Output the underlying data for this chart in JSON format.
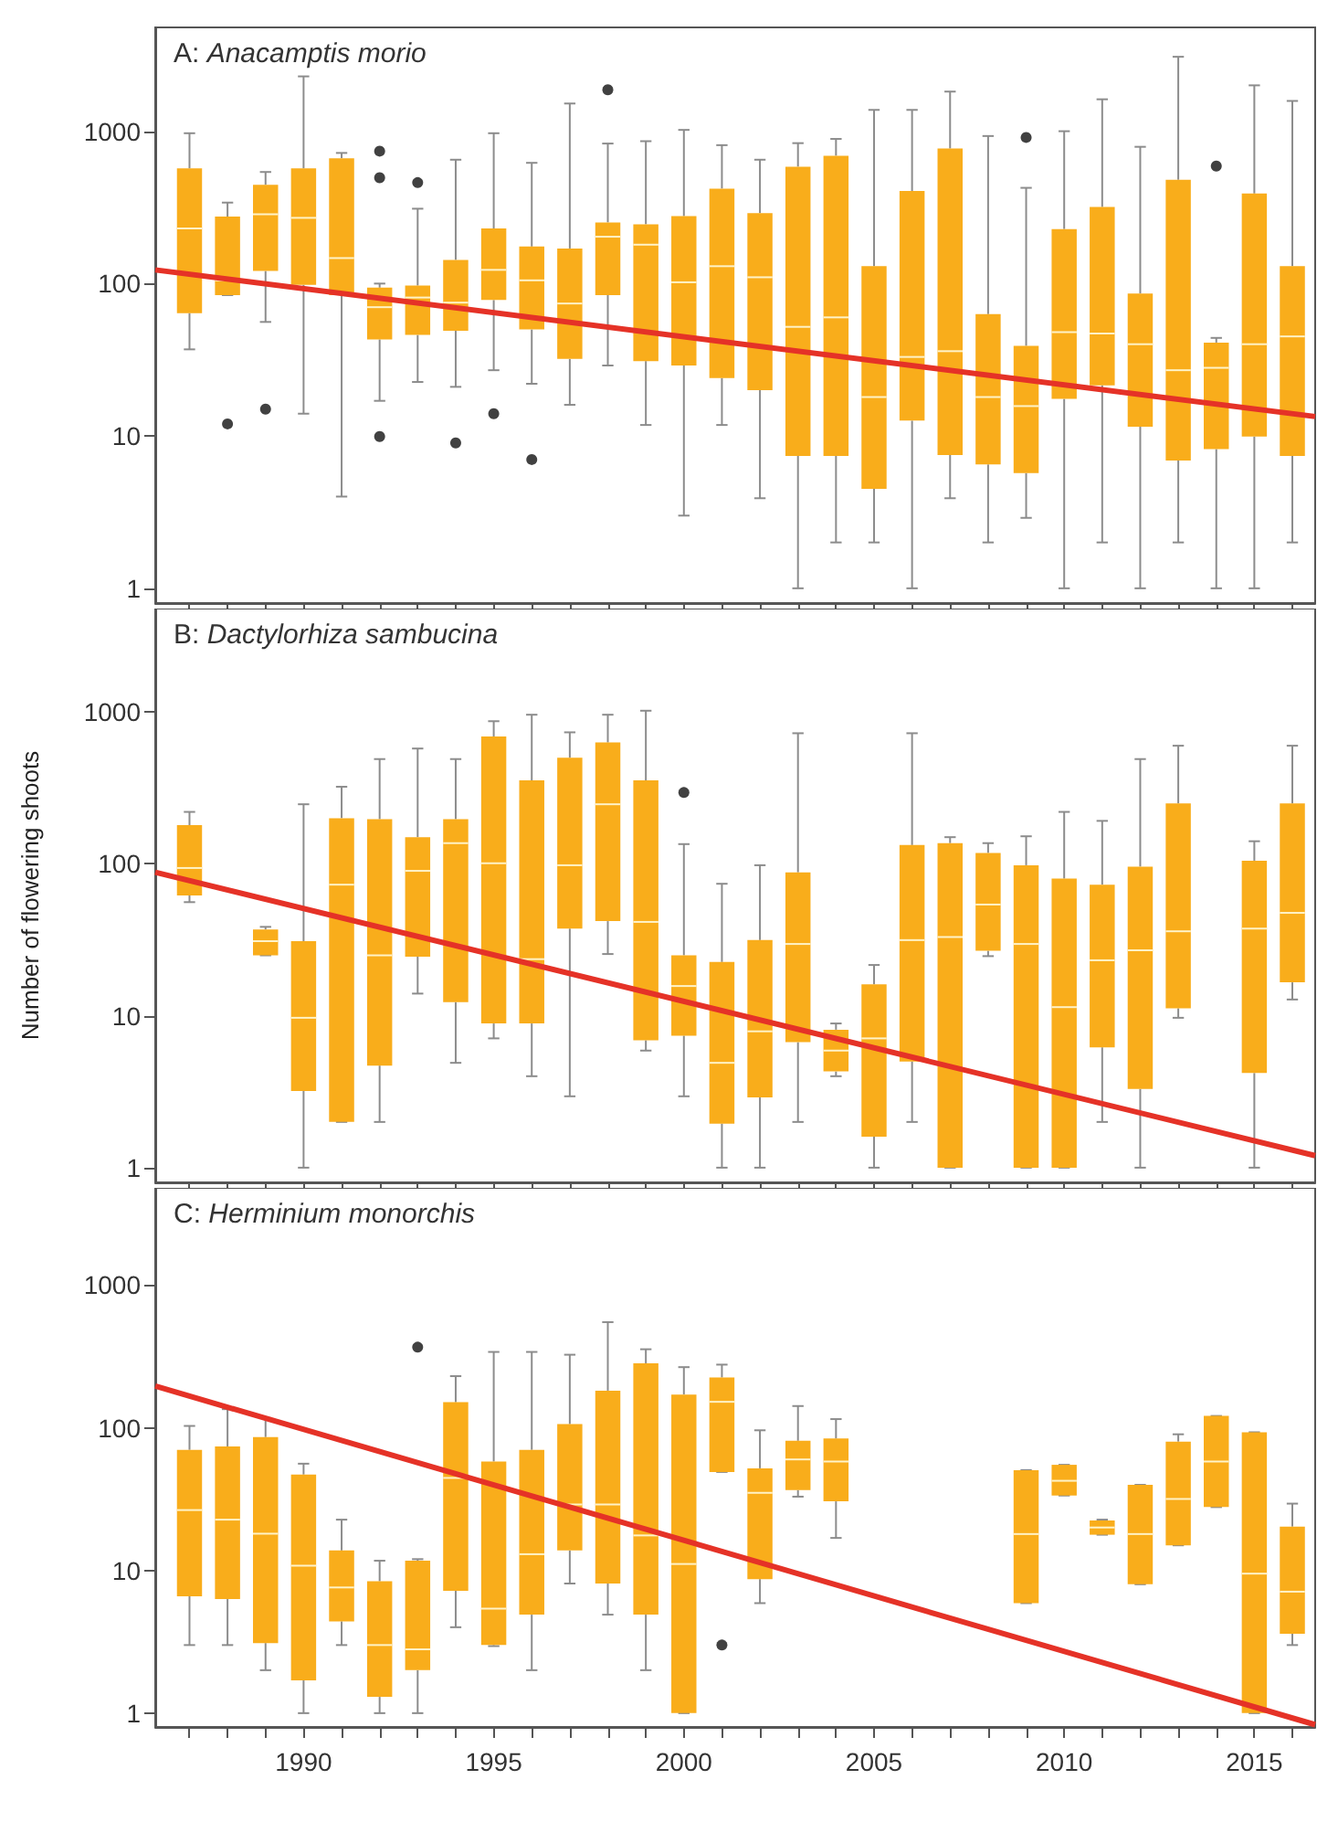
{
  "chart_data": [
    {
      "type": "box",
      "title": "A: Anacamptis morio",
      "log": "y",
      "tick_labels": "y",
      "xlim": [
        1986.1,
        2016.6
      ],
      "ylim": [
        0.8,
        4800
      ],
      "yticks": [
        1,
        10,
        100,
        1000
      ],
      "xticks": [
        {
          "value": 1987,
          "label": null
        },
        {
          "value": 1988,
          "label": null
        },
        {
          "value": 1989,
          "label": null
        },
        1990,
        {
          "value": 1991,
          "label": null
        },
        {
          "value": 1992,
          "label": null
        },
        {
          "value": 1993,
          "label": null
        },
        {
          "value": 1994,
          "label": null
        },
        1995,
        {
          "value": 1996,
          "label": null
        },
        {
          "value": 1997,
          "label": null
        },
        {
          "value": 1998,
          "label": null
        },
        {
          "value": 1999,
          "label": null
        },
        2000,
        {
          "value": 2001,
          "label": null
        },
        {
          "value": 2002,
          "label": null
        },
        {
          "value": 2003,
          "label": null
        },
        {
          "value": 2004,
          "label": null
        },
        2005,
        {
          "value": 2006,
          "label": null
        },
        {
          "value": 2007,
          "label": null
        },
        {
          "value": 2008,
          "label": null
        },
        {
          "value": 2009,
          "label": null
        },
        2010,
        {
          "value": 2011,
          "label": null
        },
        {
          "value": 2012,
          "label": null
        },
        {
          "value": 2013,
          "label": null
        },
        {
          "value": 2014,
          "label": null
        },
        2015,
        {
          "value": 2016,
          "label": null
        }
      ],
      "series": [
        {
          "color": "#f9ad1b",
          "x": [
            1987,
            1988,
            1989,
            1990,
            1991,
            1992,
            1993,
            1994,
            1995,
            1996,
            1997,
            1998,
            1999,
            2000,
            2001,
            2002,
            2003,
            2004,
            2005,
            2006,
            2007,
            2008,
            2009,
            2010,
            2011,
            2012,
            2013,
            2014,
            2015,
            2016
          ],
          "boxes": [
            {
              "low": 37,
              "q1": 64,
              "median": 230,
              "q3": 570,
              "high": 970
            },
            {
              "low": 84,
              "q1": 84,
              "median": 105,
              "q3": 275,
              "high": 340,
              "outliers": [
                12
              ]
            },
            {
              "low": 56,
              "q1": 121,
              "median": 285,
              "q3": 445,
              "high": 540,
              "outliers": [
                15
              ]
            },
            {
              "low": 14,
              "q1": 98,
              "median": 270,
              "q3": 570,
              "high": 2290
            },
            {
              "low": 4,
              "q1": 84,
              "median": 147,
              "q3": 665,
              "high": 720
            },
            {
              "low": 17,
              "q1": 43,
              "median": 70,
              "q3": 94,
              "high": 100,
              "outliers": [
                740,
                495,
                9.9
              ]
            },
            {
              "low": 22.6,
              "q1": 46,
              "median": 81,
              "q3": 97,
              "high": 310,
              "outliers": [
                460
              ]
            },
            {
              "low": 21,
              "q1": 49,
              "median": 75,
              "q3": 143,
              "high": 650,
              "outliers": [
                9
              ]
            },
            {
              "low": 27,
              "q1": 78,
              "median": 123,
              "q3": 230,
              "high": 970,
              "outliers": [
                14
              ]
            },
            {
              "low": 22,
              "q1": 50,
              "median": 105,
              "q3": 175,
              "high": 620,
              "outliers": [
                7
              ]
            },
            {
              "low": 16,
              "q1": 32,
              "median": 74,
              "q3": 170,
              "high": 1520
            },
            {
              "low": 29,
              "q1": 84,
              "median": 203,
              "q3": 252,
              "high": 830,
              "outliers": [
                1870
              ]
            },
            {
              "low": 11.8,
              "q1": 31,
              "median": 180,
              "q3": 245,
              "high": 860
            },
            {
              "low": 3,
              "q1": 29,
              "median": 102,
              "q3": 277,
              "high": 1020
            },
            {
              "low": 11.8,
              "q1": 24,
              "median": 130,
              "q3": 420,
              "high": 810
            },
            {
              "low": 3.9,
              "q1": 20,
              "median": 110,
              "q3": 290,
              "high": 650
            },
            {
              "low": 1,
              "q1": 7.4,
              "median": 52,
              "q3": 585,
              "high": 835
            },
            {
              "low": 2,
              "q1": 7.4,
              "median": 60,
              "q3": 690,
              "high": 890
            },
            {
              "low": 2,
              "q1": 4.5,
              "median": 18,
              "q3": 130,
              "high": 1380
            },
            {
              "low": 1,
              "q1": 12.6,
              "median": 33,
              "q3": 405,
              "high": 1380
            },
            {
              "low": 3.9,
              "q1": 7.5,
              "median": 36,
              "q3": 770,
              "high": 1820
            },
            {
              "low": 2,
              "q1": 6.5,
              "median": 18,
              "q3": 63,
              "high": 930
            },
            {
              "low": 2.9,
              "q1": 5.7,
              "median": 15.7,
              "q3": 39,
              "high": 425,
              "outliers": [
                910
              ]
            },
            {
              "low": 1,
              "q1": 17.5,
              "median": 48,
              "q3": 228,
              "high": 1000
            },
            {
              "low": 2,
              "q1": 21.5,
              "median": 47,
              "q3": 318,
              "high": 1620
            },
            {
              "low": 1,
              "q1": 11.5,
              "median": 40,
              "q3": 86,
              "high": 790
            },
            {
              "low": 2,
              "q1": 6.9,
              "median": 27,
              "q3": 480,
              "high": 3080
            },
            {
              "low": 1,
              "q1": 8.2,
              "median": 28,
              "q3": 41,
              "high": 44,
              "outliers": [
                590
              ]
            },
            {
              "low": 1,
              "q1": 9.9,
              "median": 40,
              "q3": 390,
              "high": 2000
            },
            {
              "low": 2,
              "q1": 7.4,
              "median": 45,
              "q3": 130,
              "high": 1580
            }
          ]
        },
        {
          "type": "line",
          "color": "#e53227",
          "x": [
            1986.1,
            2016.6
          ],
          "values": [
            123,
            13.4
          ]
        }
      ]
    },
    {
      "type": "box",
      "title": "B: Dactylorhiza sambucina",
      "ylabel": "Number of flowering shoots",
      "log": "y",
      "tick_labels": "y",
      "xlim": [
        1986.1,
        2016.6
      ],
      "ylim": [
        0.8,
        4800
      ],
      "yticks": [
        1,
        10,
        100,
        1000
      ],
      "xticks": [
        {
          "value": 1987,
          "label": null
        },
        {
          "value": 1988,
          "label": null
        },
        {
          "value": 1989,
          "label": null
        },
        1990,
        {
          "value": 1991,
          "label": null
        },
        {
          "value": 1992,
          "label": null
        },
        {
          "value": 1993,
          "label": null
        },
        {
          "value": 1994,
          "label": null
        },
        1995,
        {
          "value": 1996,
          "label": null
        },
        {
          "value": 1997,
          "label": null
        },
        {
          "value": 1998,
          "label": null
        },
        {
          "value": 1999,
          "label": null
        },
        2000,
        {
          "value": 2001,
          "label": null
        },
        {
          "value": 2002,
          "label": null
        },
        {
          "value": 2003,
          "label": null
        },
        {
          "value": 2004,
          "label": null
        },
        2005,
        {
          "value": 2006,
          "label": null
        },
        {
          "value": 2007,
          "label": null
        },
        {
          "value": 2008,
          "label": null
        },
        {
          "value": 2009,
          "label": null
        },
        2010,
        {
          "value": 2011,
          "label": null
        },
        {
          "value": 2012,
          "label": null
        },
        {
          "value": 2013,
          "label": null
        },
        {
          "value": 2014,
          "label": null
        },
        2015,
        {
          "value": 2016,
          "label": null
        }
      ],
      "series": [
        {
          "color": "#f9ad1b",
          "x": [
            1987,
            1989,
            1990,
            1991,
            1992,
            1993,
            1994,
            1995,
            1996,
            1997,
            1998,
            1999,
            2000,
            2001,
            2002,
            2003,
            2004,
            2005,
            2006,
            2007,
            2008,
            2009,
            2010,
            2011,
            2012,
            2013,
            2015,
            2016
          ],
          "boxes": [
            {
              "low": 56,
              "q1": 62,
              "median": 94,
              "q3": 180,
              "high": 220
            },
            {
              "low": 25,
              "q1": 25,
              "median": 31,
              "q3": 37,
              "high": 38.5
            },
            {
              "low": 1,
              "q1": 3.2,
              "median": 9.7,
              "q3": 31,
              "high": 247
            },
            {
              "low": 2,
              "q1": 2,
              "median": 73,
              "q3": 200,
              "high": 322
            },
            {
              "low": 2,
              "q1": 4.7,
              "median": 25,
              "q3": 197,
              "high": 490
            },
            {
              "low": 14,
              "q1": 24.5,
              "median": 90,
              "q3": 150,
              "high": 575
            },
            {
              "low": 4.9,
              "q1": 12.3,
              "median": 137,
              "q3": 197,
              "high": 490
            },
            {
              "low": 7.1,
              "q1": 8.9,
              "median": 101,
              "q3": 690,
              "high": 870
            },
            {
              "low": 4,
              "q1": 8.9,
              "median": 23.6,
              "q3": 355,
              "high": 960
            },
            {
              "low": 2.95,
              "q1": 37.5,
              "median": 98,
              "q3": 500,
              "high": 735
            },
            {
              "low": 25.5,
              "q1": 42,
              "median": 247,
              "q3": 630,
              "high": 960
            },
            {
              "low": 5.9,
              "q1": 6.9,
              "median": 41.5,
              "q3": 355,
              "high": 1020
            },
            {
              "low": 2.95,
              "q1": 7.4,
              "median": 15.7,
              "q3": 25,
              "high": 135,
              "outliers": [
                295
              ]
            },
            {
              "low": 1,
              "q1": 1.95,
              "median": 4.9,
              "q3": 22.6,
              "high": 74
            },
            {
              "low": 1,
              "q1": 2.9,
              "median": 7.9,
              "q3": 31.5,
              "high": 98
            },
            {
              "low": 2,
              "q1": 6.7,
              "median": 29.7,
              "q3": 88,
              "high": 725
            },
            {
              "low": 4,
              "q1": 4.3,
              "median": 5.9,
              "q3": 8.1,
              "high": 8.9
            },
            {
              "low": 1,
              "q1": 1.6,
              "median": 7.1,
              "q3": 16.1,
              "high": 21.6
            },
            {
              "low": 2,
              "q1": 5,
              "median": 31.5,
              "q3": 133,
              "high": 725
            },
            {
              "low": 1,
              "q1": 1,
              "median": 33,
              "q3": 137,
              "high": 150
            },
            {
              "low": 24.7,
              "q1": 26.8,
              "median": 54,
              "q3": 118,
              "high": 137
            },
            {
              "low": 1,
              "q1": 1,
              "median": 29.7,
              "q3": 98,
              "high": 152
            },
            {
              "low": 1,
              "q1": 1,
              "median": 11.4,
              "q3": 80,
              "high": 220
            },
            {
              "low": 2,
              "q1": 6.2,
              "median": 23.2,
              "q3": 73,
              "high": 192
            },
            {
              "low": 1,
              "q1": 3.3,
              "median": 27,
              "q3": 96,
              "high": 490
            },
            {
              "low": 9.7,
              "q1": 11.2,
              "median": 36,
              "q3": 250,
              "high": 600
            },
            {
              "low": 1,
              "q1": 4.2,
              "median": 37.5,
              "q3": 105,
              "high": 141
            },
            {
              "low": 12.8,
              "q1": 16.6,
              "median": 47.6,
              "q3": 250,
              "high": 600
            }
          ]
        },
        {
          "type": "line",
          "color": "#e53227",
          "x": [
            1986.1,
            2016.6
          ],
          "values": [
            88,
            1.2
          ]
        }
      ]
    },
    {
      "type": "box",
      "title": "C: Herminium monorchis",
      "log": "y",
      "xlim": [
        1986.1,
        2016.6
      ],
      "ylim": [
        0.8,
        4800
      ],
      "yticks": [
        1,
        10,
        100,
        1000
      ],
      "xticks": [
        {
          "value": 1987,
          "label": null
        },
        {
          "value": 1988,
          "label": null
        },
        {
          "value": 1989,
          "label": null
        },
        1990,
        {
          "value": 1991,
          "label": null
        },
        {
          "value": 1992,
          "label": null
        },
        {
          "value": 1993,
          "label": null
        },
        {
          "value": 1994,
          "label": null
        },
        1995,
        {
          "value": 1996,
          "label": null
        },
        {
          "value": 1997,
          "label": null
        },
        {
          "value": 1998,
          "label": null
        },
        {
          "value": 1999,
          "label": null
        },
        2000,
        {
          "value": 2001,
          "label": null
        },
        {
          "value": 2002,
          "label": null
        },
        {
          "value": 2003,
          "label": null
        },
        {
          "value": 2004,
          "label": null
        },
        2005,
        {
          "value": 2006,
          "label": null
        },
        {
          "value": 2007,
          "label": null
        },
        {
          "value": 2008,
          "label": null
        },
        {
          "value": 2009,
          "label": null
        },
        2010,
        {
          "value": 2011,
          "label": null
        },
        {
          "value": 2012,
          "label": null
        },
        {
          "value": 2013,
          "label": null
        },
        {
          "value": 2014,
          "label": null
        },
        2015,
        {
          "value": 2016,
          "label": null
        }
      ],
      "series": [
        {
          "color": "#f9ad1b",
          "x": [
            1987,
            1988,
            1989,
            1990,
            1991,
            1992,
            1993,
            1994,
            1995,
            1996,
            1997,
            1998,
            1999,
            2000,
            2001,
            2002,
            2003,
            2004,
            2009,
            2010,
            2011,
            2012,
            2013,
            2014,
            2015,
            2016
          ],
          "boxes": [
            {
              "low": 3,
              "q1": 6.6,
              "median": 26.5,
              "q3": 70,
              "high": 103
            },
            {
              "low": 3,
              "q1": 6.3,
              "median": 22.7,
              "q3": 74,
              "high": 135
            },
            {
              "low": 2,
              "q1": 3.1,
              "median": 18.1,
              "q3": 86,
              "high": 117
            },
            {
              "low": 1,
              "q1": 1.7,
              "median": 10.8,
              "q3": 47,
              "high": 56
            },
            {
              "low": 3,
              "q1": 4.4,
              "median": 7.6,
              "q3": 13.8,
              "high": 22.7
            },
            {
              "low": 1,
              "q1": 1.3,
              "median": 3,
              "q3": 8.4,
              "high": 11.7
            },
            {
              "low": 1,
              "q1": 2,
              "median": 2.8,
              "q3": 11.7,
              "high": 12,
              "outliers": [
                367
              ]
            },
            {
              "low": 4,
              "q1": 7.2,
              "median": 44.5,
              "q3": 151,
              "high": 230
            },
            {
              "low": 2.95,
              "q1": 3,
              "median": 5.4,
              "q3": 58,
              "high": 340
            },
            {
              "low": 2,
              "q1": 4.9,
              "median": 13,
              "q3": 70,
              "high": 340
            },
            {
              "low": 8.1,
              "q1": 13.8,
              "median": 29,
              "q3": 106,
              "high": 325
            },
            {
              "low": 4.9,
              "q1": 8.1,
              "median": 29,
              "q3": 182,
              "high": 550
            },
            {
              "low": 2,
              "q1": 4.9,
              "median": 17.6,
              "q3": 283,
              "high": 355
            },
            {
              "low": 1,
              "q1": 1,
              "median": 11.1,
              "q3": 171,
              "high": 266
            },
            {
              "low": 49,
              "q1": 49,
              "median": 152,
              "q3": 225,
              "high": 277,
              "outliers": [
                3
              ]
            },
            {
              "low": 5.9,
              "q1": 8.7,
              "median": 35,
              "q3": 52,
              "high": 96
            },
            {
              "low": 32.9,
              "q1": 36.6,
              "median": 60,
              "q3": 81,
              "high": 142
            },
            {
              "low": 16.9,
              "q1": 30.5,
              "median": 58,
              "q3": 84,
              "high": 115
            },
            {
              "low": 5.9,
              "q1": 5.9,
              "median": 18,
              "q3": 50.5,
              "high": 50.5
            },
            {
              "low": 33.5,
              "q1": 33.5,
              "median": 42.5,
              "q3": 55,
              "high": 55
            },
            {
              "low": 17.8,
              "q1": 17.8,
              "median": 20,
              "q3": 22.4,
              "high": 22.7
            },
            {
              "low": 8,
              "q1": 8,
              "median": 18,
              "q3": 39.8,
              "high": 39.8
            },
            {
              "low": 15,
              "q1": 15,
              "median": 31.7,
              "q3": 80,
              "high": 90
            },
            {
              "low": 27.8,
              "q1": 27.8,
              "median": 58,
              "q3": 121,
              "high": 121
            },
            {
              "low": 1,
              "q1": 1,
              "median": 9.5,
              "q3": 93,
              "high": 93
            },
            {
              "low": 3,
              "q1": 3.6,
              "median": 7.1,
              "q3": 20.3,
              "high": 29.4
            }
          ]
        },
        {
          "type": "line",
          "color": "#e53227",
          "x": [
            1986.1,
            2016.6
          ],
          "values": [
            196,
            0.83
          ]
        }
      ]
    }
  ]
}
